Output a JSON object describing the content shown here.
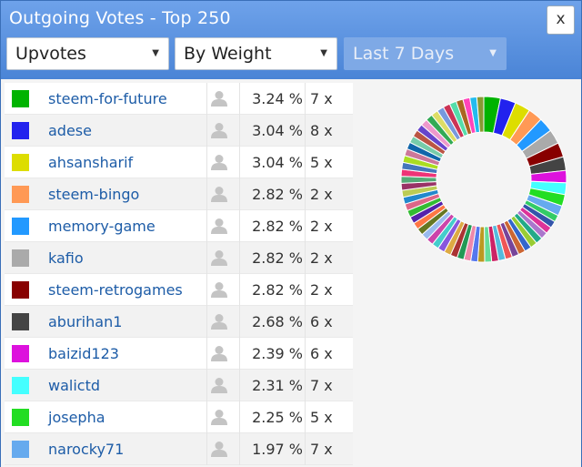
{
  "window": {
    "title": "Outgoing Votes - Top 250",
    "close_label": "x"
  },
  "filters": [
    {
      "value": "Upvotes",
      "disabled": false
    },
    {
      "value": "By Weight",
      "disabled": false
    },
    {
      "value": "Last 7 Days",
      "disabled": true
    }
  ],
  "votes": [
    {
      "name": "steem-for-future",
      "percent": "3.24 %",
      "count": "7 x",
      "color": "#00b300"
    },
    {
      "name": "adese",
      "percent": "3.04 %",
      "count": "8 x",
      "color": "#2222ee"
    },
    {
      "name": "ahsansharif",
      "percent": "3.04 %",
      "count": "5 x",
      "color": "#dddd00"
    },
    {
      "name": "steem-bingo",
      "percent": "2.82 %",
      "count": "2 x",
      "color": "#ff9955"
    },
    {
      "name": "memory-game",
      "percent": "2.82 %",
      "count": "2 x",
      "color": "#2299ff"
    },
    {
      "name": "kafio",
      "percent": "2.82 %",
      "count": "2 x",
      "color": "#aaaaaa"
    },
    {
      "name": "steem-retrogames",
      "percent": "2.82 %",
      "count": "2 x",
      "color": "#880000"
    },
    {
      "name": "aburihan1",
      "percent": "2.68 %",
      "count": "6 x",
      "color": "#444444"
    },
    {
      "name": "baizid123",
      "percent": "2.39 %",
      "count": "6 x",
      "color": "#dd11dd"
    },
    {
      "name": "walictd",
      "percent": "2.31 %",
      "count": "7 x",
      "color": "#44ffff"
    },
    {
      "name": "josepha",
      "percent": "2.25 %",
      "count": "5 x",
      "color": "#22dd22"
    },
    {
      "name": "narocky71",
      "percent": "1.97 %",
      "count": "7 x",
      "color": "#66aaee"
    }
  ],
  "chart_data": {
    "type": "pie",
    "donut": true,
    "title": "",
    "slices": [
      {
        "name": "steem-for-future",
        "value": 3.24,
        "color": "#00b300"
      },
      {
        "name": "adese",
        "value": 3.04,
        "color": "#2222ee"
      },
      {
        "name": "ahsansharif",
        "value": 3.04,
        "color": "#dddd00"
      },
      {
        "name": "steem-bingo",
        "value": 2.82,
        "color": "#ff9955"
      },
      {
        "name": "memory-game",
        "value": 2.82,
        "color": "#2299ff"
      },
      {
        "name": "kafio",
        "value": 2.82,
        "color": "#aaaaaa"
      },
      {
        "name": "steem-retrogames",
        "value": 2.82,
        "color": "#880000"
      },
      {
        "name": "aburihan1",
        "value": 2.68,
        "color": "#444444"
      },
      {
        "name": "baizid123",
        "value": 2.39,
        "color": "#dd11dd"
      },
      {
        "name": "walictd",
        "value": 2.31,
        "color": "#44ffff"
      },
      {
        "name": "josepha",
        "value": 2.25,
        "color": "#22dd22"
      },
      {
        "name": "narocky71",
        "value": 1.97,
        "color": "#66aaee"
      }
    ],
    "other_slice_colors": [
      "#33cc66",
      "#3355aa",
      "#dd3399",
      "#aa77cc",
      "#22aa88",
      "#99cc33",
      "#3366cc",
      "#cc6633",
      "#774499",
      "#ee5555",
      "#55bbdd",
      "#cc2266",
      "#66dd99",
      "#bb9922",
      "#5577ee",
      "#ee88aa",
      "#229955",
      "#aa3333",
      "#ddaa44",
      "#8855dd",
      "#44cccc",
      "#cc44aa",
      "#99bbee",
      "#667722",
      "#ff7744",
      "#5522aa",
      "#33bb33",
      "#dd6688",
      "#2288cc",
      "#bbcc55",
      "#993366",
      "#55aa77",
      "#ee3377",
      "#4477bb",
      "#aadd22",
      "#cc7799",
      "#1166aa",
      "#77ccaa",
      "#bb5544",
      "#6644cc",
      "#ee99cc",
      "#33aa55",
      "#dddd66",
      "#7799dd",
      "#cc3355",
      "#55ddaa",
      "#aa6622",
      "#ff44bb",
      "#22bbee",
      "#889933"
    ]
  }
}
